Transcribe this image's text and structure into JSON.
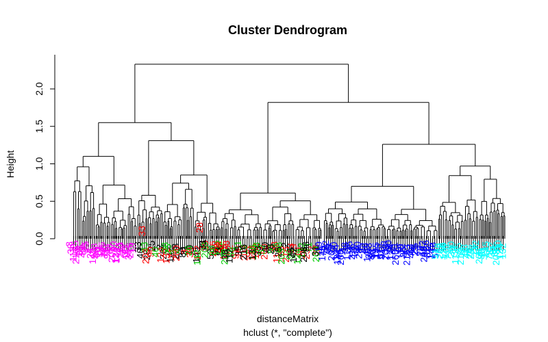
{
  "chart_data": {
    "type": "dendrogram",
    "title": "Cluster Dendrogram",
    "xlabel": "distanceMatrix",
    "sublabel": "hclust (*, \"complete\")",
    "ylabel": "Height",
    "ylim": [
      0,
      2.35
    ],
    "yticks": [
      "0.0",
      "0.5",
      "1.0",
      "1.5",
      "2.0"
    ],
    "ytick_values": [
      0,
      0.5,
      1.0,
      1.5,
      2.0
    ],
    "cluster_colors": [
      "#ff00ff",
      "#000000",
      "#ff0000",
      "#00cc00",
      "#0000ff",
      "#00ffff"
    ],
    "merges": {
      "root": 2.33,
      "left_group": 1.55,
      "right_group": 1.82,
      "magenta_cluster": 1.1,
      "mixed_cluster": 1.31,
      "black_green_red": 0.85,
      "red_green_main": 0.61,
      "blue_cyan_group": 1.26,
      "blue_cluster": 0.7,
      "cyan_cluster": 0.97
    },
    "leaf_labels": [
      "3",
      "38",
      "112",
      "35",
      "216",
      "13",
      "33",
      "40",
      "28",
      "25",
      "2",
      "26",
      "142",
      "208",
      "86",
      "31",
      "19",
      "145",
      "78",
      "52",
      "91",
      "88",
      "203",
      "90",
      "124",
      "132",
      "71",
      "260"
    ]
  }
}
